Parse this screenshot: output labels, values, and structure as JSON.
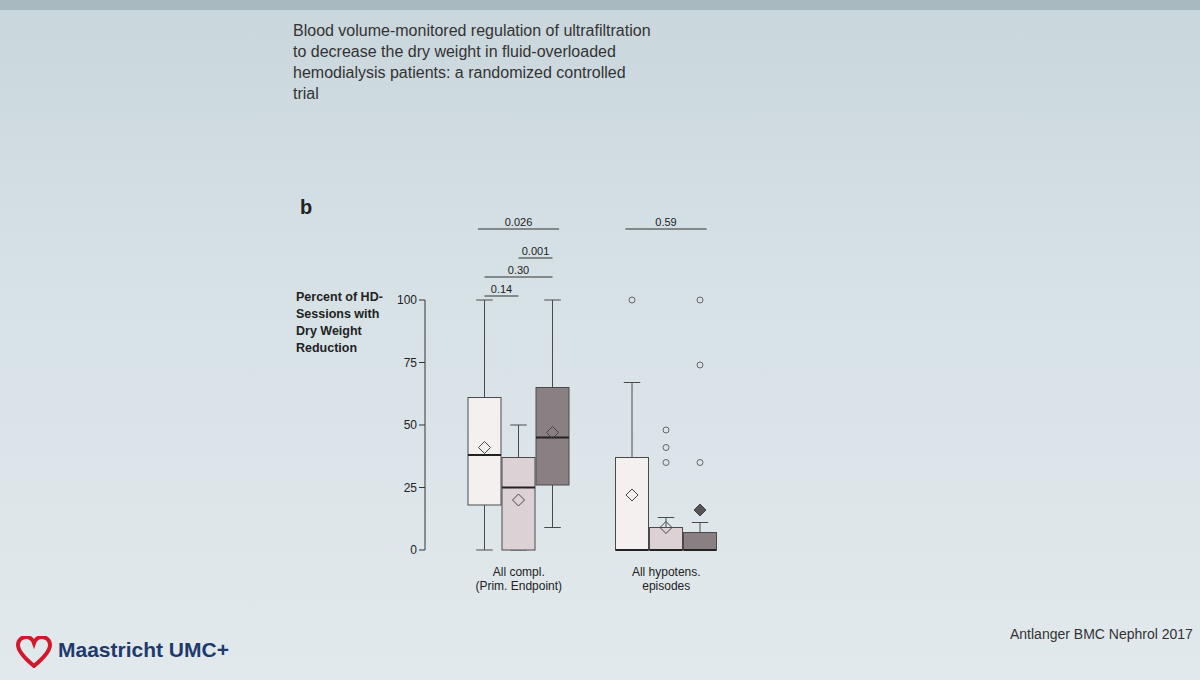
{
  "chart_data": {
    "type": "box",
    "title": "Blood volume-monitored regulation of ultrafiltration to decrease the dry weight in fluid-overloaded hemodialysis patients: a randomized controlled trial",
    "panel_label": "b",
    "y_label": "Percent of HD-Sessions with Dry Weight Reduction",
    "categories": [
      "All compl. (Prim. Endpoint)",
      "All hypotens. episodes"
    ],
    "ylim": [
      0,
      100
    ],
    "yticks": [
      0,
      25,
      50,
      75,
      100
    ],
    "series": [
      {
        "color": "#f4f0f0",
        "min": [
          0,
          0
        ],
        "q1": [
          18,
          0
        ],
        "median": [
          38,
          0
        ],
        "q3": [
          61,
          37
        ],
        "max": [
          100,
          67
        ],
        "mean": [
          41,
          22
        ],
        "outliers": [
          [],
          [
            100
          ]
        ]
      },
      {
        "color": "#dcd2d5",
        "min": [
          0,
          0
        ],
        "q1": [
          0,
          0
        ],
        "median": [
          25,
          0
        ],
        "q3": [
          37,
          9
        ],
        "max": [
          50,
          13
        ],
        "mean": [
          20,
          9
        ],
        "outliers": [
          [],
          [
            48,
            41,
            35
          ]
        ]
      },
      {
        "color": "#8a8083",
        "min": [
          9,
          0
        ],
        "q1": [
          26,
          0
        ],
        "median": [
          45,
          0
        ],
        "q3": [
          65,
          7
        ],
        "max": [
          100,
          11
        ],
        "mean": [
          47,
          16
        ],
        "outliers": [
          [],
          [
            100,
            74,
            35
          ]
        ]
      }
    ],
    "annotations": [
      {
        "text": "0.026",
        "category": 0,
        "from": 0,
        "to": 2
      },
      {
        "text": "0.001",
        "category": 0,
        "from": 1,
        "to": 2
      },
      {
        "text": "0.30",
        "category": 0,
        "from": 0,
        "to": 2
      },
      {
        "text": "0.14",
        "category": 0,
        "from": 0,
        "to": 1
      },
      {
        "text": "0.59",
        "category": 1,
        "from": 0,
        "to": 2
      }
    ]
  },
  "footer": {
    "logo": "Maastricht UMC+",
    "citation": "Antlanger BMC Nephrol 2017"
  }
}
